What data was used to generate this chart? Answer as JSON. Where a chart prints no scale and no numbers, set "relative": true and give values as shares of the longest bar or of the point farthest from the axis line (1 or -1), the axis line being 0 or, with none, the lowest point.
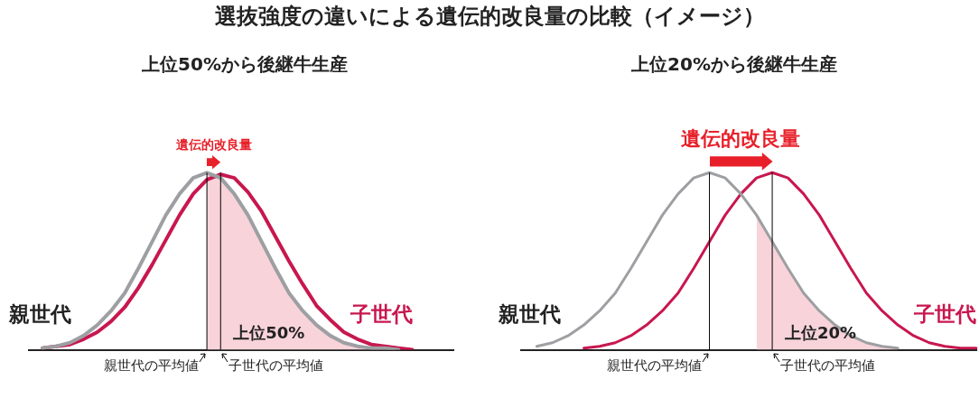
{
  "chart_data": [
    {
      "type": "line",
      "title": "上位50%から後継牛生産",
      "annotations": [
        "選抜強度の違いによる遺伝的改良量の比較（イメージ）",
        "遺伝的改良量",
        "親世代の平均値",
        "子世代の平均値"
      ],
      "relative": true,
      "marker": "none",
      "categories": [
        null,
        null,
        null,
        null,
        null,
        null,
        null,
        null,
        null,
        null,
        null,
        null,
        null,
        null,
        null,
        null,
        null,
        null,
        null,
        null,
        null,
        null,
        null,
        null,
        null,
        null,
        null,
        null,
        null,
        null,
        null,
        null
      ],
      "series": [
        {
          "name": "親世代",
          "color": "#9d9fa2",
          "values": [
            null,
            0.01,
            0.02,
            0.04,
            0.08,
            0.14,
            0.22,
            0.32,
            0.46,
            0.61,
            0.76,
            0.88,
            0.97,
            1,
            0.97,
            0.88,
            0.76,
            0.61,
            0.46,
            0.32,
            0.22,
            0.14,
            0.08,
            0.04,
            0.02,
            0.01,
            0.01,
            0.0,
            null,
            null,
            null,
            null
          ]
        },
        {
          "name": "子世代",
          "color": "#c8174f",
          "values": [
            null,
            0.01,
            0.02,
            0.03,
            0.06,
            0.1,
            0.16,
            0.24,
            0.35,
            0.48,
            0.62,
            0.76,
            0.88,
            0.96,
            0.99,
            0.97,
            0.89,
            0.78,
            0.64,
            0.5,
            0.37,
            0.25,
            0.17,
            0.1,
            0.06,
            0.03,
            0.02,
            0.01,
            0.0,
            null,
            null,
            null
          ]
        },
        {
          "type": "area",
          "name": "上位50%",
          "color": "#f8d3da",
          "values": [
            null,
            null,
            null,
            null,
            null,
            null,
            null,
            null,
            null,
            null,
            null,
            null,
            null,
            1,
            0.97,
            0.88,
            0.76,
            0.61,
            0.46,
            0.32,
            0.22,
            0.14,
            0.08,
            0.04,
            0.02,
            0.01,
            0.01,
            0.0,
            null,
            null,
            null,
            null
          ]
        }
      ]
    },
    {
      "type": "line",
      "title": "上位20%から後継牛生産",
      "annotations": [
        "遺伝的改良量",
        "親世代の平均値",
        "子世代の平均値"
      ],
      "relative": true,
      "marker": "none",
      "categories": [
        null,
        null,
        null,
        null,
        null,
        null,
        null,
        null,
        null,
        null,
        null,
        null,
        null,
        null,
        null,
        null,
        null,
        null,
        null,
        null,
        null,
        null,
        null,
        null,
        null,
        null,
        null,
        null,
        null,
        null
      ],
      "series": [
        {
          "name": "親世代",
          "color": "#9d9fa2",
          "values": [
            null,
            0.02,
            0.04,
            0.08,
            0.14,
            0.22,
            0.32,
            0.46,
            0.61,
            0.76,
            0.88,
            0.97,
            1,
            0.97,
            0.88,
            0.76,
            0.61,
            0.46,
            0.32,
            0.22,
            0.14,
            0.08,
            0.04,
            0.02,
            0.01,
            null,
            null,
            null,
            null,
            null
          ]
        },
        {
          "name": "子世代",
          "color": "#c8174f",
          "values": [
            null,
            null,
            null,
            null,
            0.01,
            0.02,
            0.04,
            0.08,
            0.14,
            0.22,
            0.32,
            0.46,
            0.61,
            0.76,
            0.88,
            0.97,
            1,
            0.97,
            0.88,
            0.76,
            0.61,
            0.46,
            0.32,
            0.22,
            0.14,
            0.08,
            0.04,
            0.02,
            0.01,
            0.01
          ]
        },
        {
          "type": "area",
          "name": "上位20%",
          "color": "#f8d3da",
          "values": [
            null,
            null,
            null,
            null,
            null,
            null,
            null,
            null,
            null,
            null,
            null,
            null,
            null,
            null,
            null,
            0.76,
            0.61,
            0.46,
            0.32,
            0.22,
            0.14,
            0.08,
            0.04,
            0.02,
            0.01,
            null,
            null,
            null,
            null,
            null
          ]
        }
      ]
    }
  ]
}
